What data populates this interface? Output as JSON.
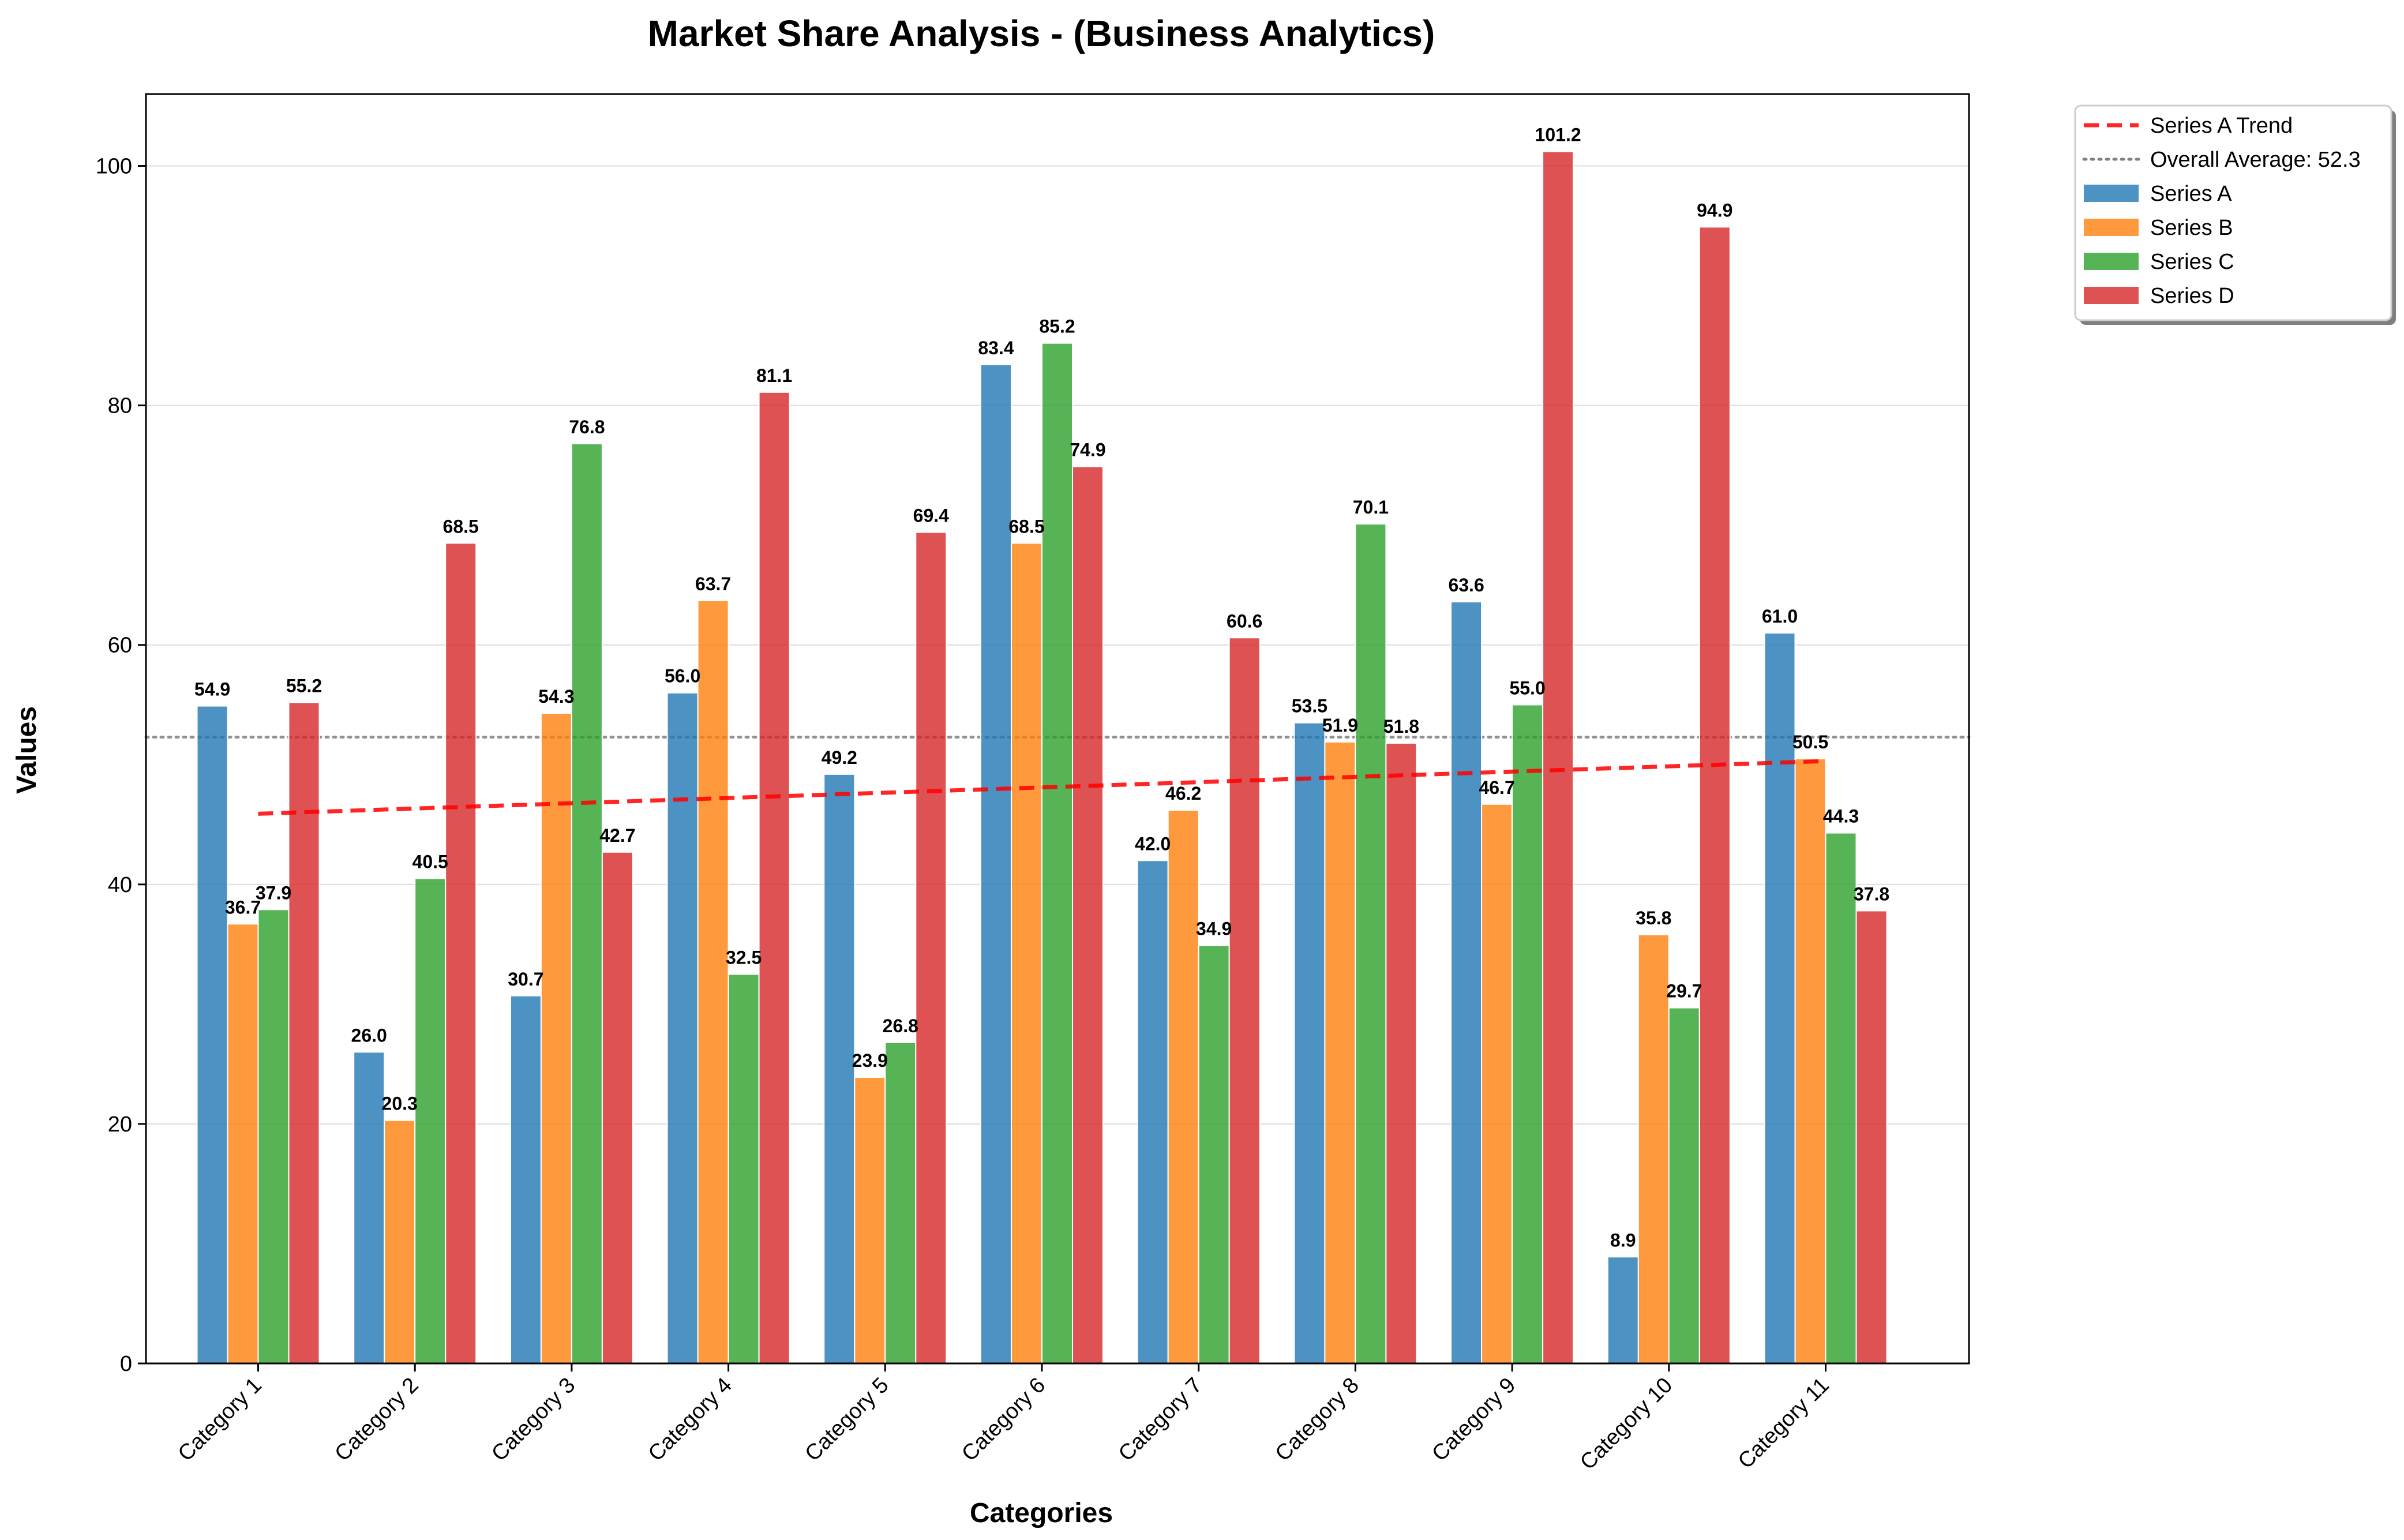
{
  "chart_data": {
    "type": "bar",
    "title": "Market Share Analysis - (Business Analytics)",
    "xlabel": "Categories",
    "ylabel": "Values",
    "ylim": [
      0,
      106
    ],
    "yticks": [
      0,
      20,
      40,
      60,
      80,
      100
    ],
    "grid": "horizontal",
    "legend_position": "outside top-right",
    "categories": [
      "Category 1",
      "Category 2",
      "Category 3",
      "Category 4",
      "Category 5",
      "Category 6",
      "Category 7",
      "Category 8",
      "Category 9",
      "Category 10",
      "Category 11"
    ],
    "series": [
      {
        "name": "Series A",
        "color": "#1f77b4",
        "values": [
          54.9,
          26.0,
          30.7,
          56.0,
          49.2,
          83.4,
          42.0,
          53.5,
          63.6,
          8.9,
          61.0
        ]
      },
      {
        "name": "Series B",
        "color": "#ff7f0e",
        "values": [
          36.7,
          20.3,
          54.3,
          63.7,
          23.9,
          68.5,
          46.2,
          51.9,
          46.7,
          35.8,
          50.5
        ]
      },
      {
        "name": "Series C",
        "color": "#2ca02c",
        "values": [
          37.9,
          40.5,
          76.8,
          32.5,
          26.8,
          85.2,
          34.9,
          70.1,
          55.0,
          29.7,
          44.3
        ]
      },
      {
        "name": "Series D",
        "color": "#d62728",
        "values": [
          55.2,
          68.5,
          42.7,
          81.1,
          69.4,
          74.9,
          60.6,
          51.8,
          101.2,
          94.9,
          37.8
        ]
      }
    ],
    "trend_line": {
      "name": "Series A Trend",
      "color": "#ff0000",
      "style": "dashed",
      "start": 45.9,
      "end": 50.3
    },
    "average_line": {
      "name": "Overall Average: 52.3",
      "value": 52.3,
      "color": "#808080",
      "style": "dotted"
    }
  }
}
